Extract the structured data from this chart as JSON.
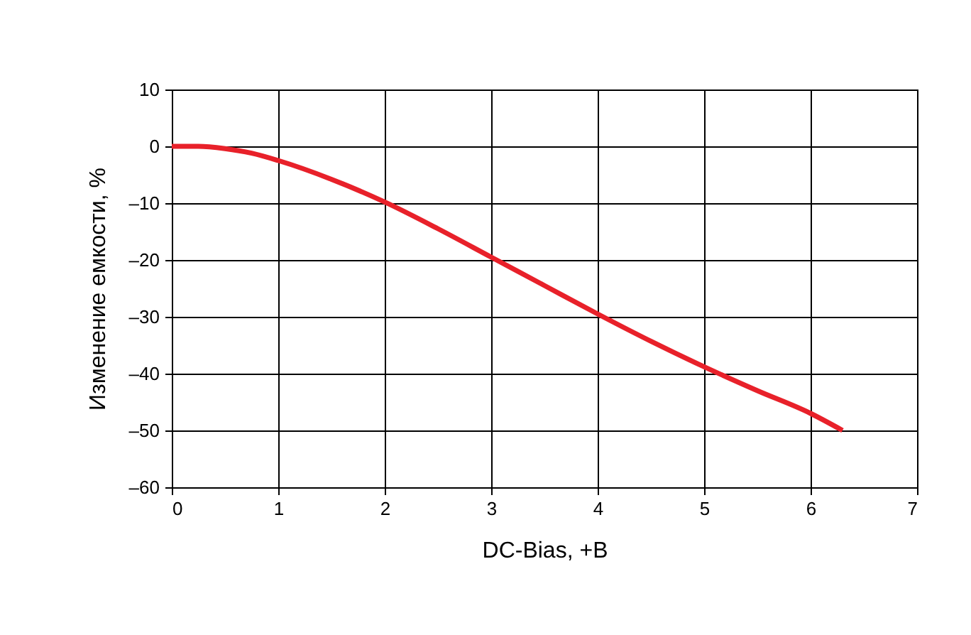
{
  "chart_data": {
    "type": "line",
    "xlabel": "DC-Bias, +В",
    "ylabel": "Изменение емкости, %",
    "x": [
      0,
      0.25,
      0.5,
      0.75,
      1,
      1.5,
      2,
      2.5,
      3,
      3.5,
      4,
      4.5,
      5,
      5.5,
      6,
      6.3
    ],
    "series": [
      {
        "color": "#e8212a",
        "values": [
          0,
          0,
          -0.4,
          -1.2,
          -2.5,
          -5.8,
          -9.8,
          -14.5,
          -19.5,
          -24.5,
          -29.5,
          -34.3,
          -38.8,
          -43,
          -47,
          -50
        ]
      }
    ],
    "xlim": [
      0,
      7
    ],
    "xticks": [
      0,
      1,
      2,
      3,
      4,
      5,
      6,
      7
    ],
    "ylim": [
      -60,
      10
    ],
    "yticks": [
      10,
      0,
      {
        "value": -10,
        "label": "–10"
      },
      {
        "value": -20,
        "label": "–20"
      },
      {
        "value": -30,
        "label": "–30"
      },
      {
        "value": -40,
        "label": "–40"
      },
      {
        "value": -50,
        "label": "–50"
      },
      {
        "value": -60,
        "label": "–60"
      }
    ],
    "grid": true,
    "marker": "none",
    "line_style": "solid"
  }
}
